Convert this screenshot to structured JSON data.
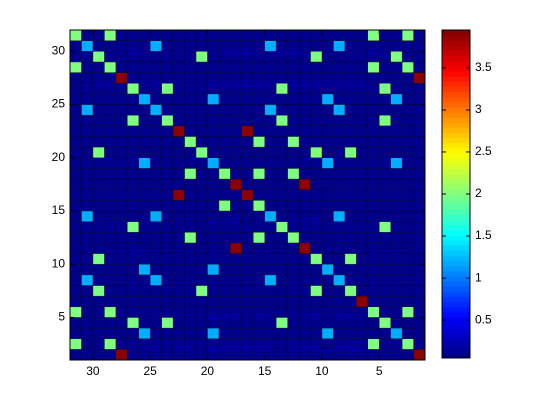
{
  "chart_data": {
    "type": "heatmap",
    "colormap": "jet",
    "xbins": [
      1,
      2,
      3,
      4,
      5,
      6,
      7,
      8,
      9,
      10,
      11,
      12,
      13,
      14,
      15,
      16,
      17,
      18,
      19,
      20,
      21,
      22,
      23,
      24,
      25,
      26,
      27,
      28,
      29,
      30,
      31,
      32
    ],
    "ybins": [
      1,
      2,
      3,
      4,
      5,
      6,
      7,
      8,
      9,
      10,
      11,
      12,
      13,
      14,
      15,
      16,
      17,
      18,
      19,
      20,
      21,
      22,
      23,
      24,
      25,
      26,
      27,
      28,
      29,
      30,
      31,
      32
    ],
    "xlim": [
      32,
      1
    ],
    "ylim": [
      1,
      32
    ],
    "xticks": [
      30,
      25,
      20,
      15,
      10,
      5
    ],
    "yticks": [
      5,
      10,
      15,
      20,
      25,
      30
    ],
    "clim": [
      0.05,
      3.95
    ],
    "colorbar_ticks": [
      0.5,
      1,
      1.5,
      2,
      2.5,
      3,
      3.5
    ],
    "z": [
      [
        3.9,
        0.1,
        0.1,
        0.1,
        0.1,
        0.1,
        0.1,
        0.1,
        0.1,
        0.1,
        0.1,
        0.1,
        0.1,
        0.1,
        0.1,
        0.1,
        0.1,
        0.1,
        0.1,
        0.1,
        0.1,
        0.1,
        0.1,
        0.1,
        0.1,
        0.1,
        3.9,
        0.1,
        0.1,
        0.1,
        0.1
      ],
      [
        0.1,
        2,
        0.1,
        0.1,
        2,
        0.1,
        0.1,
        0.1,
        0.1,
        0.1,
        0.1,
        0.1,
        0.1,
        0.1,
        0.1,
        0.1,
        0.1,
        0.1,
        0.1,
        0.1,
        0.1,
        0.1,
        0.1,
        0.1,
        0.1,
        0.1,
        0.1,
        2,
        0.1,
        0.1,
        2
      ],
      [
        0.1,
        0.1,
        1.2,
        0.1,
        0.1,
        0.1,
        0.1,
        0.1,
        1.2,
        0.1,
        0.1,
        0.1,
        0.1,
        0.1,
        0.1,
        0.1,
        0.1,
        0.1,
        1.2,
        0.1,
        0.1,
        0.1,
        0.1,
        0.1,
        1.2,
        0.1,
        0.1,
        0.1,
        0.1,
        0.1,
        0.1
      ],
      [
        0.1,
        0.1,
        0.1,
        2,
        0.1,
        0.1,
        0.1,
        0.1,
        0.1,
        0.1,
        0.1,
        0.1,
        2,
        0.1,
        0.1,
        0.1,
        0.1,
        0.1,
        0.1,
        0.1,
        0.1,
        0.1,
        2,
        0.1,
        0.1,
        2,
        0.1,
        0.1,
        0.1,
        0.1,
        0.1
      ],
      [
        0.1,
        2,
        0.1,
        0.1,
        2,
        0.1,
        0.1,
        0.1,
        0.1,
        0.1,
        0.1,
        0.1,
        0.1,
        0.1,
        0.1,
        0.1,
        0.1,
        0.1,
        0.1,
        0.1,
        0.1,
        0.1,
        0.1,
        0.1,
        0.1,
        0.1,
        0.1,
        2,
        0.1,
        0.1,
        2
      ],
      [
        0.1,
        0.1,
        0.1,
        0.1,
        0.1,
        3.9,
        0.1,
        0.1,
        0.1,
        0.1,
        0.1,
        0.1,
        0.1,
        0.1,
        0.1,
        0.1,
        0.1,
        0.1,
        0.1,
        0.1,
        0.1,
        0.1,
        0.1,
        0.1,
        0.1,
        0.1,
        0.1,
        0.1,
        0.1,
        0.1,
        0.1
      ],
      [
        0.1,
        0.1,
        0.1,
        0.1,
        0.1,
        0.1,
        2,
        0.1,
        0.1,
        2,
        0.1,
        0.1,
        0.1,
        0.1,
        0.1,
        0.1,
        0.1,
        0.1,
        0.1,
        2,
        0.1,
        0.1,
        0.1,
        0.1,
        0.1,
        0.1,
        0.1,
        0.1,
        2,
        0.1,
        0.1
      ],
      [
        0.1,
        0.1,
        0.1,
        0.1,
        0.1,
        0.1,
        0.1,
        1.2,
        0.1,
        0.1,
        0.1,
        0.1,
        0.1,
        1.2,
        0.1,
        0.1,
        0.1,
        0.1,
        0.1,
        0.1,
        0.1,
        0.1,
        0.1,
        1.2,
        0.1,
        0.1,
        0.1,
        0.1,
        0.1,
        1.2,
        0.1
      ],
      [
        0.1,
        0.1,
        0.1,
        0.1,
        0.1,
        0.1,
        0.1,
        0.1,
        1.2,
        0.1,
        0.1,
        0.1,
        0.1,
        0.1,
        0.1,
        0.1,
        0.1,
        0.1,
        1.2,
        0.1,
        0.1,
        0.1,
        0.1,
        0.1,
        1.2,
        0.1,
        0.1,
        0.1,
        0.1,
        0.1,
        0.1
      ],
      [
        0.1,
        0.1,
        0.1,
        0.1,
        0.1,
        0.1,
        2,
        0.1,
        0.1,
        2,
        0.1,
        0.1,
        0.1,
        0.1,
        0.1,
        0.1,
        0.1,
        0.1,
        0.1,
        0.1,
        0.1,
        0.1,
        0.1,
        0.1,
        0.1,
        0.1,
        0.1,
        0.1,
        2,
        0.1,
        0.1
      ],
      [
        0.1,
        0.1,
        0.1,
        0.1,
        0.1,
        0.1,
        0.1,
        0.1,
        0.1,
        0.1,
        3.9,
        0.1,
        0.1,
        0.1,
        0.1,
        0.1,
        3.9,
        0.1,
        0.1,
        0.1,
        0.1,
        0.1,
        0.1,
        0.1,
        0.1,
        0.1,
        0.1,
        0.1,
        0.1,
        0.1,
        0.1
      ],
      [
        0.1,
        0.1,
        0.1,
        0.1,
        0.1,
        0.1,
        0.1,
        0.1,
        0.1,
        0.1,
        0.1,
        2,
        0.1,
        0.1,
        2,
        0.1,
        0.1,
        0.1,
        0.1,
        0.1,
        2,
        0.1,
        0.1,
        0.1,
        0.1,
        0.1,
        0.1,
        0.1,
        0.1,
        0.1,
        0.1
      ],
      [
        0.1,
        0.1,
        0.1,
        2,
        0.1,
        0.1,
        0.1,
        0.1,
        0.1,
        0.1,
        0.1,
        0.1,
        2,
        0.1,
        0.1,
        0.1,
        0.1,
        0.1,
        0.1,
        0.1,
        0.1,
        0.1,
        0.1,
        0.1,
        0.1,
        2,
        0.1,
        0.1,
        0.1,
        0.1,
        0.1
      ],
      [
        0.1,
        0.1,
        0.1,
        0.1,
        0.1,
        0.1,
        0.1,
        1.2,
        0.1,
        0.1,
        0.1,
        0.1,
        0.1,
        1.2,
        0.1,
        0.1,
        0.1,
        0.1,
        0.1,
        0.1,
        0.1,
        0.1,
        0.1,
        1.2,
        0.1,
        0.1,
        0.1,
        0.1,
        0.1,
        1.2,
        0.1
      ],
      [
        0.1,
        0.1,
        0.1,
        0.1,
        0.1,
        0.1,
        0.1,
        0.1,
        0.1,
        0.1,
        0.1,
        0.1,
        0.1,
        0.1,
        2,
        0.1,
        0.1,
        2,
        0.1,
        0.1,
        0.1,
        0.1,
        0.1,
        0.1,
        0.1,
        0.1,
        0.1,
        0.1,
        0.1,
        0.1,
        0.1
      ],
      [
        0.1,
        0.1,
        0.1,
        0.1,
        0.1,
        0.1,
        0.1,
        0.1,
        0.1,
        0.1,
        0.1,
        0.1,
        0.1,
        0.1,
        0.1,
        3.9,
        0.1,
        0.1,
        0.1,
        0.1,
        0.1,
        3.9,
        0.1,
        0.1,
        0.1,
        0.1,
        0.1,
        0.1,
        0.1,
        0.1,
        0.1
      ],
      [
        0.1,
        0.1,
        0.1,
        0.1,
        0.1,
        0.1,
        0.1,
        0.1,
        0.1,
        0.1,
        3.9,
        0.1,
        0.1,
        0.1,
        0.1,
        0.1,
        3.9,
        0.1,
        0.1,
        0.1,
        0.1,
        0.1,
        0.1,
        0.1,
        0.1,
        0.1,
        0.1,
        0.1,
        0.1,
        0.1,
        0.1
      ],
      [
        0.1,
        0.1,
        0.1,
        0.1,
        0.1,
        0.1,
        0.1,
        0.1,
        0.1,
        0.1,
        0.1,
        2,
        0.1,
        0.1,
        2,
        0.1,
        0.1,
        2,
        0.1,
        0.1,
        2,
        0.1,
        0.1,
        0.1,
        0.1,
        0.1,
        0.1,
        0.1,
        0.1,
        0.1,
        0.1
      ],
      [
        0.1,
        0.1,
        1.2,
        0.1,
        0.1,
        0.1,
        0.1,
        0.1,
        1.2,
        0.1,
        0.1,
        0.1,
        0.1,
        0.1,
        0.1,
        0.1,
        0.1,
        0.1,
        1.2,
        0.1,
        0.1,
        0.1,
        0.1,
        0.1,
        1.2,
        0.1,
        0.1,
        0.1,
        0.1,
        0.1,
        0.1
      ],
      [
        0.1,
        0.1,
        0.1,
        0.1,
        0.1,
        0.1,
        2,
        0.1,
        0.1,
        2,
        0.1,
        0.1,
        0.1,
        0.1,
        0.1,
        0.1,
        0.1,
        0.1,
        0.1,
        2,
        0.1,
        0.1,
        0.1,
        0.1,
        0.1,
        0.1,
        0.1,
        0.1,
        2,
        0.1,
        0.1
      ],
      [
        0.1,
        0.1,
        0.1,
        0.1,
        0.1,
        0.1,
        0.1,
        0.1,
        0.1,
        0.1,
        0.1,
        2,
        0.1,
        0.1,
        2,
        0.1,
        0.1,
        0.1,
        0.1,
        0.1,
        2,
        0.1,
        0.1,
        0.1,
        0.1,
        0.1,
        0.1,
        0.1,
        0.1,
        0.1,
        0.1
      ],
      [
        0.1,
        0.1,
        0.1,
        0.1,
        0.1,
        0.1,
        0.1,
        0.1,
        0.1,
        0.1,
        0.1,
        0.1,
        0.1,
        0.1,
        0.1,
        3.9,
        0.1,
        0.1,
        0.1,
        0.1,
        0.1,
        3.9,
        0.1,
        0.1,
        0.1,
        0.1,
        0.1,
        0.1,
        0.1,
        0.1,
        0.1
      ],
      [
        0.1,
        0.1,
        0.1,
        2,
        0.1,
        0.1,
        0.1,
        0.1,
        0.1,
        0.1,
        0.1,
        0.1,
        2,
        0.1,
        0.1,
        0.1,
        0.1,
        0.1,
        0.1,
        0.1,
        0.1,
        0.1,
        2,
        0.1,
        0.1,
        2,
        0.1,
        0.1,
        0.1,
        0.1,
        0.1
      ],
      [
        0.1,
        0.1,
        0.1,
        0.1,
        0.1,
        0.1,
        0.1,
        1.2,
        0.1,
        0.1,
        0.1,
        0.1,
        0.1,
        1.2,
        0.1,
        0.1,
        0.1,
        0.1,
        0.1,
        0.1,
        0.1,
        0.1,
        0.1,
        1.2,
        0.1,
        0.1,
        0.1,
        0.1,
        0.1,
        1.2,
        0.1
      ],
      [
        0.1,
        0.1,
        1.2,
        0.1,
        0.1,
        0.1,
        0.1,
        0.1,
        1.2,
        0.1,
        0.1,
        0.1,
        0.1,
        0.1,
        0.1,
        0.1,
        0.1,
        0.1,
        1.2,
        0.1,
        0.1,
        0.1,
        0.1,
        0.1,
        1.2,
        0.1,
        0.1,
        0.1,
        0.1,
        0.1,
        0.1
      ],
      [
        0.1,
        0.1,
        0.1,
        2,
        0.1,
        0.1,
        0.1,
        0.1,
        0.1,
        0.1,
        0.1,
        0.1,
        2,
        0.1,
        0.1,
        0.1,
        0.1,
        0.1,
        0.1,
        0.1,
        0.1,
        0.1,
        2,
        0.1,
        0.1,
        2,
        0.1,
        0.1,
        0.1,
        0.1,
        0.1
      ],
      [
        3.9,
        0.1,
        0.1,
        0.1,
        0.1,
        0.1,
        0.1,
        0.1,
        0.1,
        0.1,
        0.1,
        0.1,
        0.1,
        0.1,
        0.1,
        0.1,
        0.1,
        0.1,
        0.1,
        0.1,
        0.1,
        0.1,
        0.1,
        0.1,
        0.1,
        0.1,
        3.9,
        0.1,
        0.1,
        0.1,
        0.1
      ],
      [
        0.1,
        2,
        0.1,
        0.1,
        2,
        0.1,
        0.1,
        0.1,
        0.1,
        0.1,
        0.1,
        0.1,
        0.1,
        0.1,
        0.1,
        0.1,
        0.1,
        0.1,
        0.1,
        0.1,
        0.1,
        0.1,
        0.1,
        0.1,
        0.1,
        0.1,
        0.1,
        2,
        0.1,
        0.1,
        2
      ],
      [
        0.1,
        0.1,
        2,
        0.1,
        0.1,
        0.1,
        0.1,
        0.1,
        0.1,
        2,
        0.1,
        0.1,
        0.1,
        0.1,
        0.1,
        0.1,
        0.1,
        0.1,
        0.1,
        2,
        0.1,
        0.1,
        0.1,
        0.1,
        0.1,
        0.1,
        0.1,
        0.1,
        2,
        0.1,
        0.1
      ],
      [
        0.1,
        0.1,
        0.1,
        0.1,
        0.1,
        0.1,
        0.1,
        1.2,
        0.1,
        0.1,
        0.1,
        0.1,
        0.1,
        1.2,
        0.1,
        0.1,
        0.1,
        0.1,
        0.1,
        0.1,
        0.1,
        0.1,
        0.1,
        1.2,
        0.1,
        0.1,
        0.1,
        0.1,
        0.1,
        1.2,
        0.1
      ],
      [
        0.1,
        2,
        0.1,
        0.1,
        2,
        0.1,
        0.1,
        0.1,
        0.1,
        0.1,
        0.1,
        0.1,
        0.1,
        0.1,
        0.1,
        0.1,
        0.1,
        0.1,
        0.1,
        0.1,
        0.1,
        0.1,
        0.1,
        0.1,
        0.1,
        0.1,
        0.1,
        2,
        0.1,
        0.1,
        2
      ]
    ]
  }
}
